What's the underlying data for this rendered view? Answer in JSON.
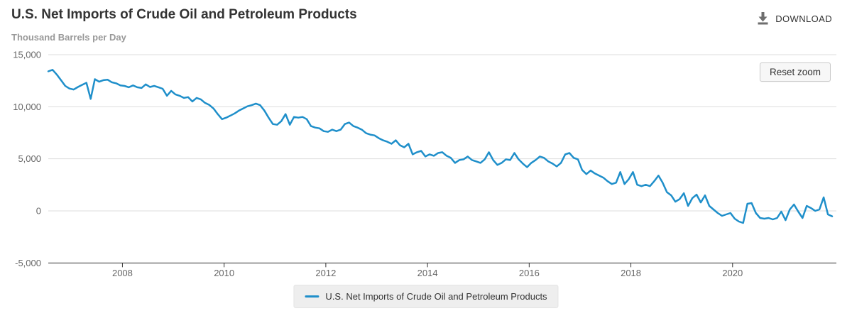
{
  "header": {
    "title": "U.S. Net Imports of Crude Oil and Petroleum Products",
    "subtitle": "Thousand Barrels per Day",
    "download_label": "DOWNLOAD"
  },
  "buttons": {
    "reset_zoom_label": "Reset zoom"
  },
  "legend": {
    "items": [
      {
        "label": "U.S. Net Imports of Crude Oil and Petroleum Products",
        "color": "#1f8fca"
      }
    ]
  },
  "colors": {
    "line": "#1f8fca",
    "grid": "#dddddd",
    "axis_line": "#333333",
    "tick_label": "#666666",
    "title": "#333333",
    "subtitle": "#999999",
    "download_icon": "#6e6e6e",
    "legend_bg": "#eeeeee"
  },
  "chart_data": {
    "type": "line",
    "title": "U.S. Net Imports of Crude Oil and Petroleum Products",
    "ylabel": "Thousand Barrels per Day",
    "frequency": "monthly",
    "start_period": "2006-07",
    "end_period": "2021-12",
    "x_start": 2006.5417,
    "x_step": 0.0833333,
    "xlim": [
      2006.5417,
      2022.0417
    ],
    "ylim": [
      -5000,
      15000
    ],
    "grid": {
      "horizontal": true,
      "vertical": false
    },
    "legend_position": "bottom-center",
    "xticks": {
      "values": [
        2008,
        2010,
        2012,
        2014,
        2016,
        2018,
        2020
      ],
      "labels": [
        "2008",
        "2010",
        "2012",
        "2014",
        "2016",
        "2018",
        "2020"
      ]
    },
    "yticks": {
      "values": [
        15000,
        10000,
        5000,
        0,
        -5000
      ],
      "labels": [
        "15,000",
        "10,000",
        "5,000",
        "0",
        "-5,000"
      ]
    },
    "series": [
      {
        "name": "U.S. Net Imports of Crude Oil and Petroleum Products",
        "color": "#1f8fca",
        "values": [
          13400,
          13550,
          13100,
          12550,
          12000,
          11750,
          11650,
          11900,
          12100,
          12300,
          10750,
          12650,
          12400,
          12550,
          12600,
          12350,
          12250,
          12050,
          12000,
          11870,
          12050,
          11870,
          11800,
          12150,
          11900,
          12000,
          11870,
          11730,
          11050,
          11530,
          11190,
          11050,
          10850,
          10920,
          10510,
          10850,
          10710,
          10370,
          10170,
          9830,
          9290,
          8810,
          8950,
          9150,
          9360,
          9630,
          9830,
          10040,
          10150,
          10300,
          10150,
          9630,
          8950,
          8340,
          8270,
          8610,
          9290,
          8270,
          9020,
          8950,
          9020,
          8810,
          8140,
          8000,
          7930,
          7660,
          7590,
          7800,
          7660,
          7800,
          8340,
          8480,
          8140,
          8000,
          7800,
          7460,
          7320,
          7250,
          6980,
          6780,
          6640,
          6440,
          6780,
          6310,
          6100,
          6440,
          5430,
          5630,
          5760,
          5220,
          5430,
          5290,
          5560,
          5630,
          5290,
          5090,
          4610,
          4880,
          4950,
          5220,
          4880,
          4750,
          4610,
          4950,
          5630,
          4880,
          4410,
          4610,
          4950,
          4880,
          5560,
          4950,
          4540,
          4200,
          4610,
          4880,
          5220,
          5090,
          4750,
          4540,
          4270,
          4610,
          5430,
          5560,
          5090,
          4950,
          3930,
          3530,
          3870,
          3590,
          3390,
          3190,
          2850,
          2580,
          2710,
          3730,
          2580,
          3050,
          3730,
          2510,
          2370,
          2510,
          2370,
          2850,
          3390,
          2710,
          1800,
          1490,
          880,
          1130,
          1695,
          475,
          1220,
          1560,
          814,
          1490,
          475,
          135,
          -203,
          -475,
          -339,
          -205,
          -750,
          -1020,
          -1160,
          680,
          750,
          -205,
          -680,
          -750,
          -680,
          -820,
          -680,
          -68,
          -890,
          135,
          615,
          -68,
          -680,
          475,
          270,
          0,
          135,
          1300,
          -340,
          -520
        ]
      }
    ]
  }
}
